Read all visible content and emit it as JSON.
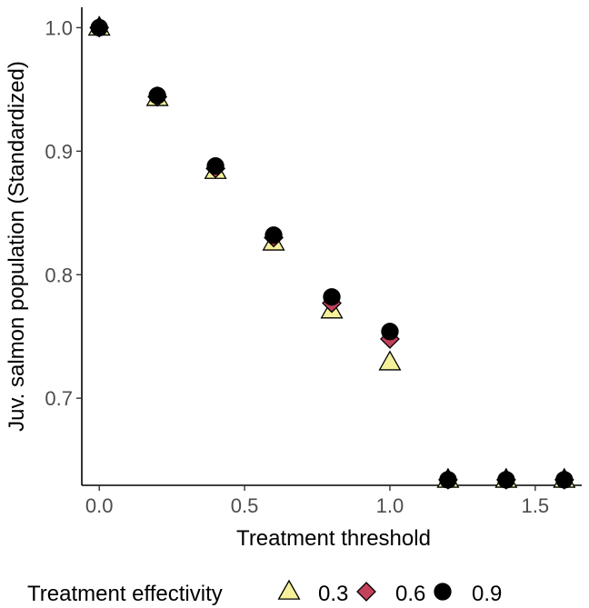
{
  "chart_data": {
    "type": "scatter",
    "title": "",
    "xlabel": "Treatment threshold",
    "ylabel": "Juv. salmon population (Standardized)",
    "xlim": [
      -0.06,
      1.66
    ],
    "ylim": [
      0.6295,
      1.0165
    ],
    "x_ticks": [
      0.0,
      0.5,
      1.0,
      1.5
    ],
    "x_tick_labels": [
      "0.0",
      "0.5",
      "1.0",
      "1.5"
    ],
    "y_ticks": [
      0.7,
      0.8,
      0.9,
      1.0
    ],
    "y_tick_labels": [
      "0.7",
      "0.8",
      "0.9",
      "1.0"
    ],
    "grid": false,
    "legend": {
      "title": "Treatment effectivity",
      "position": "bottom"
    },
    "x": [
      0.0,
      0.2,
      0.4,
      0.6,
      0.8,
      1.0,
      1.2,
      1.4,
      1.6
    ],
    "series": [
      {
        "name": "0.3",
        "marker": "triangle",
        "color": "#f4f19a",
        "values": [
          1.0,
          0.943,
          0.884,
          0.826,
          0.771,
          0.729,
          0.634,
          0.634,
          0.634
        ]
      },
      {
        "name": "0.6",
        "marker": "diamond",
        "color": "#c2415b",
        "values": [
          1.0,
          0.944,
          0.886,
          0.83,
          0.777,
          0.748,
          0.634,
          0.634,
          0.634
        ]
      },
      {
        "name": "0.9",
        "marker": "circle",
        "color": "#000000",
        "values": [
          1.0,
          0.945,
          0.888,
          0.832,
          0.782,
          0.754,
          0.634,
          0.634,
          0.634
        ]
      }
    ]
  }
}
